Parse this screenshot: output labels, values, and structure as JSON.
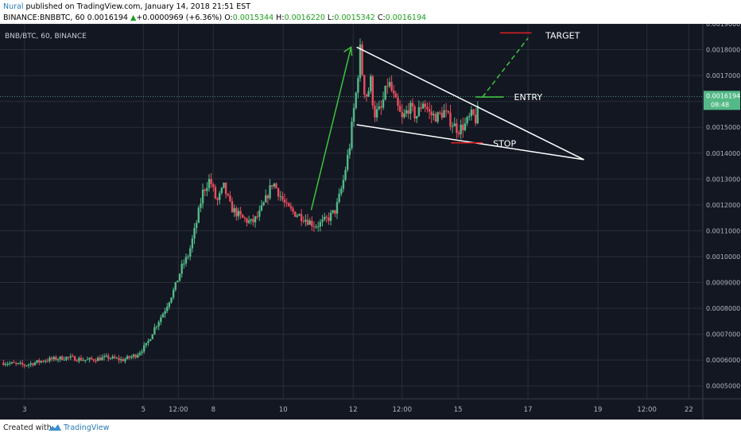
{
  "header": {
    "author": "Nural",
    "published": " published on TradingView.com, January 14, 2018 21:51 EST",
    "symbol": "BINANCE:BNBBTC, 60",
    "last": "0.0016194",
    "arrow": "▲",
    "change": "+0.0000969 (+6.36%)",
    "o_label": "O:",
    "o": "0.0015344",
    "h_label": "H:",
    "h": "0.0016220",
    "l_label": "L:",
    "l": "0.0015342",
    "c_label": "C:",
    "c": "0.0016194"
  },
  "chart_legend": "BNB/BTC, 60, BINANCE",
  "footer": {
    "created": "Created with",
    "brand": "TradingView"
  },
  "colors": {
    "up": "#53b987",
    "down": "#eb4d5c",
    "bg": "#131722",
    "grid": "#2a2e39",
    "axis_text": "#b2b5be",
    "green": "#3ec43e",
    "red": "#e02020",
    "white": "#ffffff"
  },
  "chart_data": {
    "type": "candlestick",
    "ylim": [
      0.00045,
      0.0019
    ],
    "y_ticks": [
      "0.0019000",
      "0.0018000",
      "0.0017000",
      "0.0016000",
      "0.0015000",
      "0.0014000",
      "0.0013000",
      "0.0012000",
      "0.0011000",
      "0.0010000",
      "0.0009000",
      "0.0008000",
      "0.0007000",
      "0.0006000",
      "0.0005000"
    ],
    "x_ticks": [
      {
        "label": "3",
        "t": 0.3
      },
      {
        "label": "5",
        "t": 2
      },
      {
        "label": "12:00",
        "t": 2.5
      },
      {
        "label": "8",
        "t": 3
      },
      {
        "label": "10",
        "t": 4
      },
      {
        "label": "12",
        "t": 5
      },
      {
        "label": "12:00",
        "t": 5.7
      },
      {
        "label": "15",
        "t": 6.5
      },
      {
        "label": "17",
        "t": 7.5
      },
      {
        "label": "19",
        "t": 8.5
      },
      {
        "label": "12:00",
        "t": 9.2
      },
      {
        "label": "22",
        "t": 9.8
      }
    ],
    "last_price": "0.0016194",
    "countdown": "08:48",
    "price_path": [
      [
        0.0,
        0.00059
      ],
      [
        0.3,
        0.00058
      ],
      [
        0.6,
        0.0006
      ],
      [
        0.9,
        0.00061
      ],
      [
        1.2,
        0.0006
      ],
      [
        1.5,
        0.00061
      ],
      [
        1.7,
        0.0006
      ],
      [
        1.9,
        0.00062
      ],
      [
        2.05,
        0.00066
      ],
      [
        2.15,
        0.00072
      ],
      [
        2.3,
        0.00079
      ],
      [
        2.45,
        0.00088
      ],
      [
        2.55,
        0.00096
      ],
      [
        2.65,
        0.00101
      ],
      [
        2.75,
        0.00112
      ],
      [
        2.85,
        0.00125
      ],
      [
        2.95,
        0.0013
      ],
      [
        3.05,
        0.00121
      ],
      [
        3.15,
        0.00127
      ],
      [
        3.25,
        0.00119
      ],
      [
        3.4,
        0.00115
      ],
      [
        3.55,
        0.00113
      ],
      [
        3.65,
        0.00116
      ],
      [
        3.75,
        0.00122
      ],
      [
        3.85,
        0.00129
      ],
      [
        3.95,
        0.00124
      ],
      [
        4.05,
        0.00119
      ],
      [
        4.15,
        0.00117
      ],
      [
        4.3,
        0.00115
      ],
      [
        4.45,
        0.00112
      ],
      [
        4.55,
        0.00113
      ],
      [
        4.65,
        0.00115
      ],
      [
        4.75,
        0.00118
      ],
      [
        4.85,
        0.00128
      ],
      [
        4.95,
        0.00143
      ],
      [
        5.0,
        0.00155
      ],
      [
        5.05,
        0.00165
      ],
      [
        5.1,
        0.0018
      ],
      [
        5.15,
        0.00165
      ],
      [
        5.2,
        0.00162
      ],
      [
        5.25,
        0.00168
      ],
      [
        5.3,
        0.00155
      ],
      [
        5.4,
        0.00157
      ],
      [
        5.5,
        0.00168
      ],
      [
        5.6,
        0.0016
      ],
      [
        5.7,
        0.00153
      ],
      [
        5.8,
        0.00158
      ],
      [
        5.9,
        0.00154
      ],
      [
        6.0,
        0.0016
      ],
      [
        6.1,
        0.00155
      ],
      [
        6.2,
        0.00154
      ],
      [
        6.3,
        0.00156
      ],
      [
        6.4,
        0.00152
      ],
      [
        6.5,
        0.00149
      ],
      [
        6.6,
        0.00151
      ],
      [
        6.7,
        0.00155
      ],
      [
        6.75,
        0.00153
      ],
      [
        6.8,
        0.00158
      ]
    ],
    "annotations": [
      {
        "text": "TARGET",
        "color": "#e02020",
        "value": 0.00186
      },
      {
        "text": "ENTRY",
        "color": "#3ec43e",
        "value": 0.00162
      },
      {
        "text": "STOP",
        "color": "#e02020",
        "value": 0.00144
      }
    ]
  }
}
